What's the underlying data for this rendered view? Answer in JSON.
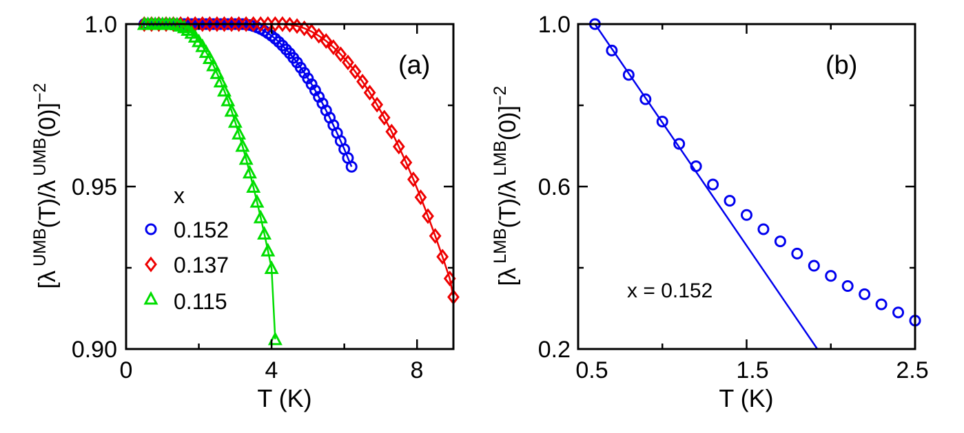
{
  "chart_data": [
    {
      "panel": "(a)",
      "type": "line",
      "xlabel": "T (K)",
      "ylabel_parts": {
        "open": "[",
        "lambda1": "λ",
        "sup1": "UMB",
        "mid": "(T)/",
        "lambda2": "λ",
        "sup2": "UMB",
        "close": "(0)]",
        "power": "−2"
      },
      "xlim": [
        0,
        9
      ],
      "ylim": [
        0.9,
        1.0
      ],
      "xticks": [
        {
          "v": 0,
          "label": "0"
        },
        {
          "v": 4,
          "label": "4"
        },
        {
          "v": 8,
          "label": "8"
        }
      ],
      "yticks": [
        {
          "v": 0.9,
          "label": "0.90"
        },
        {
          "v": 0.95,
          "label": "0.95"
        },
        {
          "v": 1.0,
          "label": "1.0"
        }
      ],
      "legend": {
        "title": "x",
        "position": "bottom-left",
        "entries": [
          {
            "label": "0.152",
            "marker": "circle",
            "color": "#0000ee"
          },
          {
            "label": "0.137",
            "marker": "diamond",
            "color": "#ee0000"
          },
          {
            "label": "0.115",
            "marker": "triangle",
            "color": "#00dd00"
          }
        ]
      },
      "series": [
        {
          "name": "0.152",
          "marker": "circle",
          "color": "#0000ee",
          "model": {
            "tstart": 3.2,
            "tend": 6.2,
            "drop": 0.1,
            "power": 2.2
          },
          "x": [
            0.5,
            0.6,
            0.7,
            0.8,
            0.9,
            1.0,
            1.1,
            1.2,
            1.3,
            1.4,
            1.5,
            1.6,
            1.7,
            1.8,
            1.9,
            2.0,
            2.1,
            2.2,
            2.3,
            2.4,
            2.5,
            2.6,
            2.7,
            2.8,
            2.9,
            3.0,
            3.1,
            3.2,
            3.3,
            3.4,
            3.5,
            3.6,
            3.7,
            3.8,
            3.9,
            4.0,
            4.1,
            4.2,
            4.3,
            4.4,
            4.5,
            4.6,
            4.7,
            4.8,
            4.9,
            5.0,
            5.1,
            5.2,
            5.3,
            5.4,
            5.5,
            5.6,
            5.7,
            5.8,
            5.9,
            6.0,
            6.1,
            6.2
          ],
          "y": [
            1.0,
            1.0,
            1.0,
            1.0,
            1.0,
            1.0,
            1.0,
            1.0,
            1.0,
            1.0,
            1.0,
            1.0,
            1.0,
            1.0,
            1.0,
            1.0,
            1.0,
            1.0,
            1.0,
            1.0,
            1.0,
            1.0,
            1.0,
            1.0,
            1.0,
            1.0,
            1.0,
            1.0,
            0.9999,
            0.9997,
            0.9994,
            0.999,
            0.9985,
            0.9979,
            0.9972,
            0.9964,
            0.9955,
            0.9945,
            0.9934,
            0.9922,
            0.991,
            0.9896,
            0.9882,
            0.9866,
            0.985,
            0.9833,
            0.9815,
            0.9796,
            0.9776,
            0.9756,
            0.9734,
            0.9712,
            0.9689,
            0.9665,
            0.964,
            0.9615,
            0.9588,
            0.9561
          ]
        },
        {
          "name": "0.137",
          "marker": "diamond",
          "color": "#ee0000",
          "model": {
            "tstart": 4.3,
            "tend": 9.0,
            "drop": 0.084,
            "power": 2.0
          },
          "x": [
            0.5,
            0.7,
            0.9,
            1.1,
            1.3,
            1.5,
            1.7,
            1.9,
            2.1,
            2.3,
            2.5,
            2.7,
            2.9,
            3.1,
            3.3,
            3.5,
            3.7,
            3.9,
            4.1,
            4.3,
            4.5,
            4.7,
            4.9,
            5.1,
            5.3,
            5.5,
            5.7,
            5.9,
            6.1,
            6.3,
            6.5,
            6.7,
            6.9,
            7.1,
            7.3,
            7.5,
            7.7,
            7.9,
            8.1,
            8.3,
            8.5,
            8.7,
            8.9,
            9.0
          ],
          "y": [
            1.0,
            1.0,
            1.0,
            1.0,
            1.0,
            1.0,
            1.0,
            1.0,
            1.0,
            1.0,
            1.0,
            1.0,
            1.0,
            1.0,
            1.0,
            1.0,
            1.0,
            1.0,
            1.0,
            1.0,
            0.9998,
            0.9994,
            0.9987,
            0.9977,
            0.9964,
            0.9948,
            0.9929,
            0.9907,
            0.9882,
            0.9854,
            0.9823,
            0.9789,
            0.9752,
            0.9712,
            0.9669,
            0.9623,
            0.9574,
            0.9522,
            0.9467,
            0.9409,
            0.9348,
            0.9284,
            0.9217,
            0.916
          ]
        },
        {
          "name": "0.115",
          "marker": "triangle",
          "color": "#00dd00",
          "model": {
            "tstart": 1.3,
            "tend": 4.1,
            "drop": 0.097,
            "power": 1.7
          },
          "x": [
            0.5,
            0.6,
            0.7,
            0.8,
            0.9,
            1.0,
            1.1,
            1.2,
            1.3,
            1.4,
            1.5,
            1.6,
            1.7,
            1.8,
            1.9,
            2.0,
            2.1,
            2.2,
            2.3,
            2.4,
            2.5,
            2.6,
            2.7,
            2.8,
            2.9,
            3.0,
            3.1,
            3.2,
            3.3,
            3.4,
            3.5,
            3.6,
            3.7,
            3.8,
            3.9,
            4.0,
            4.1
          ],
          "y": [
            1.0,
            1.0,
            1.0,
            1.0,
            1.0,
            1.0,
            1.0,
            1.0,
            1.0,
            0.9999,
            0.9995,
            0.999,
            0.9982,
            0.9973,
            0.9961,
            0.9947,
            0.9932,
            0.9914,
            0.9895,
            0.9873,
            0.9849,
            0.9823,
            0.9795,
            0.9765,
            0.9733,
            0.9699,
            0.9663,
            0.9625,
            0.9585,
            0.9543,
            0.9499,
            0.9453,
            0.9405,
            0.9355,
            0.9303,
            0.9249,
            0.903
          ]
        }
      ]
    },
    {
      "panel": "(b)",
      "type": "scatter",
      "xlabel": "T (K)",
      "ylabel_parts": {
        "open": "[",
        "lambda1": "λ",
        "sup1": "LMB",
        "mid": "(T)/",
        "lambda2": "λ",
        "sup2": "LMB",
        "close": "(0)]",
        "power": "−2"
      },
      "xlim": [
        0.5,
        2.5
      ],
      "ylim": [
        0.2,
        1.0
      ],
      "xticks": [
        {
          "v": 0.5,
          "label": "0.5"
        },
        {
          "v": 1.5,
          "label": "1.5"
        },
        {
          "v": 2.5,
          "label": "2.5"
        }
      ],
      "yticks": [
        {
          "v": 0.2,
          "label": "0.2"
        },
        {
          "v": 0.6,
          "label": "0.6"
        },
        {
          "v": 1.0,
          "label": "1.0"
        }
      ],
      "annotation": "x = 0.152",
      "series": [
        {
          "name": "x = 0.152",
          "marker": "circle",
          "color": "#0000ee",
          "x": [
            0.6,
            0.7,
            0.8,
            0.9,
            1.0,
            1.1,
            1.2,
            1.3,
            1.4,
            1.5,
            1.6,
            1.7,
            1.8,
            1.9,
            2.0,
            2.1,
            2.2,
            2.3,
            2.4,
            2.5
          ],
          "y": [
            1.0,
            0.935,
            0.875,
            0.815,
            0.76,
            0.705,
            0.65,
            0.605,
            0.565,
            0.53,
            0.495,
            0.465,
            0.435,
            0.405,
            0.38,
            0.355,
            0.335,
            0.31,
            0.29,
            0.27
          ]
        }
      ],
      "fit_line": {
        "color": "#0000ee",
        "x": [
          0.6,
          1.92
        ],
        "y": [
          1.0,
          0.2
        ]
      }
    }
  ]
}
